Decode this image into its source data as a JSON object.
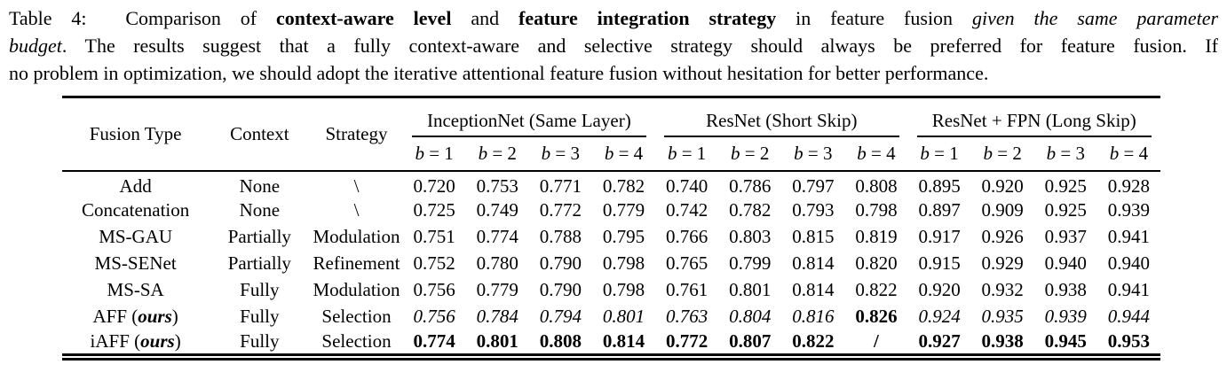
{
  "caption": {
    "lines": [
      [
        {
          "t": "Table 4:  Comparison of "
        },
        {
          "t": "context-aware level",
          "b": true
        },
        {
          "t": " and "
        },
        {
          "t": "feature integration strategy",
          "b": true
        },
        {
          "t": " in feature fusion "
        },
        {
          "t": "given the same parameter",
          "i": true
        }
      ],
      [
        {
          "t": "budget",
          "i": true
        },
        {
          "t": ". The results suggest that a fully context-aware and selective strategy should always be preferred for feature fusion. If"
        }
      ],
      [
        {
          "t": "no problem in optimization, we should adopt the iterative attentional feature fusion without hesitation for better performance."
        }
      ]
    ]
  },
  "table": {
    "stub_headers": [
      "Fusion Type",
      "Context",
      "Strategy"
    ],
    "groups": [
      {
        "label": "InceptionNet (Same Layer)"
      },
      {
        "label": "ResNet (Short Skip)"
      },
      {
        "label": "ResNet + FPN (Long Skip)"
      }
    ],
    "sub_headers": [
      [
        {
          "t": "b",
          "i": true
        },
        {
          "t": " = 1"
        }
      ],
      [
        {
          "t": "b",
          "i": true
        },
        {
          "t": " = 2"
        }
      ],
      [
        {
          "t": "b",
          "i": true
        },
        {
          "t": " = 3"
        }
      ],
      [
        {
          "t": "b",
          "i": true
        },
        {
          "t": " = 4"
        }
      ]
    ],
    "rows": [
      {
        "fusion": [
          {
            "t": "Add"
          }
        ],
        "context": "None",
        "strategy": "\\",
        "style": "normal",
        "values": [
          "0.720",
          "0.753",
          "0.771",
          "0.782",
          "0.740",
          "0.786",
          "0.797",
          "0.808",
          "0.895",
          "0.920",
          "0.925",
          "0.928"
        ]
      },
      {
        "fusion": [
          {
            "t": "Concatenation"
          }
        ],
        "context": "None",
        "strategy": "\\",
        "style": "normal",
        "values": [
          "0.725",
          "0.749",
          "0.772",
          "0.779",
          "0.742",
          "0.782",
          "0.793",
          "0.798",
          "0.897",
          "0.909",
          "0.925",
          "0.939"
        ]
      },
      {
        "fusion": [
          {
            "t": "MS-GAU"
          }
        ],
        "context": "Partially",
        "strategy": "Modulation",
        "style": "normal",
        "values": [
          "0.751",
          "0.774",
          "0.788",
          "0.795",
          "0.766",
          "0.803",
          "0.815",
          "0.819",
          "0.917",
          "0.926",
          "0.937",
          "0.941"
        ]
      },
      {
        "fusion": [
          {
            "t": "MS-SENet"
          }
        ],
        "context": "Partially",
        "strategy": "Refinement",
        "style": "normal",
        "values": [
          "0.752",
          "0.780",
          "0.790",
          "0.798",
          "0.765",
          "0.799",
          "0.814",
          "0.820",
          "0.915",
          "0.929",
          "0.940",
          "0.940"
        ]
      },
      {
        "fusion": [
          {
            "t": "MS-SA"
          }
        ],
        "context": "Fully",
        "strategy": "Modulation",
        "style": "normal",
        "values": [
          "0.756",
          "0.779",
          "0.790",
          "0.798",
          "0.761",
          "0.801",
          "0.814",
          "0.822",
          "0.920",
          "0.932",
          "0.938",
          "0.941"
        ]
      },
      {
        "fusion": [
          {
            "t": "AFF ("
          },
          {
            "t": "ours",
            "b": true,
            "i": true
          },
          {
            "t": ")"
          }
        ],
        "context": "Fully",
        "strategy": "Selection",
        "style": "italic",
        "overrides": {
          "7": "bold"
        },
        "values": [
          "0.756",
          "0.784",
          "0.794",
          "0.801",
          "0.763",
          "0.804",
          "0.816",
          "0.826",
          "0.924",
          "0.935",
          "0.939",
          "0.944"
        ]
      },
      {
        "fusion": [
          {
            "t": "iAFF ("
          },
          {
            "t": "ours",
            "b": true,
            "i": true
          },
          {
            "t": ")"
          }
        ],
        "context": "Fully",
        "strategy": "Selection",
        "style": "bold",
        "values": [
          "0.774",
          "0.801",
          "0.808",
          "0.814",
          "0.772",
          "0.807",
          "0.822",
          "/",
          "0.927",
          "0.938",
          "0.945",
          "0.953"
        ]
      }
    ]
  },
  "colors": {
    "text": "#000000",
    "background": "#ffffff",
    "rule": "#000000"
  }
}
